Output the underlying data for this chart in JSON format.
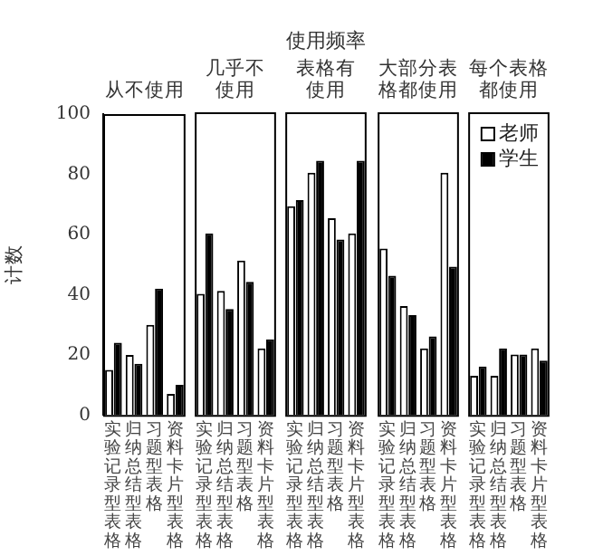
{
  "chart_data": [
    {
      "type": "bar",
      "subtitle": "从不使用",
      "ylabel": "计数",
      "categories": [
        "实验记录型表格",
        "归纳总结型表格",
        "习题型表格",
        "资料卡片型表格"
      ],
      "ylim": [
        0,
        100
      ],
      "yticks": [
        0,
        20,
        40,
        60,
        80,
        100
      ],
      "series": [
        {
          "color": "#ffffff",
          "values": [
            15,
            20,
            30,
            7
          ]
        },
        {
          "color": "#000000",
          "values": [
            24,
            17,
            42,
            10
          ]
        }
      ]
    },
    {
      "type": "bar",
      "subtitle": "几乎不使用",
      "categories": [
        "实验记录型表格",
        "归纳总结型表格",
        "习题型表格",
        "资料卡片型表格"
      ],
      "ylim": [
        0,
        100
      ],
      "tick_labels": "x",
      "series": [
        {
          "color": "#ffffff",
          "values": [
            40,
            41,
            51,
            22
          ]
        },
        {
          "color": "#000000",
          "values": [
            60,
            35,
            44,
            25
          ]
        }
      ]
    },
    {
      "type": "bar",
      "title": "使用频率",
      "subtitle": "表格有使用",
      "categories": [
        "实验记录型表格",
        "归纳总结型表格",
        "习题型表格",
        "资料卡片型表格"
      ],
      "ylim": [
        0,
        100
      ],
      "tick_labels": "x",
      "series": [
        {
          "color": "#ffffff",
          "values": [
            69,
            80,
            65,
            60
          ]
        },
        {
          "color": "#000000",
          "values": [
            71,
            84,
            58,
            84
          ]
        }
      ]
    },
    {
      "type": "bar",
      "subtitle": "大部分表格都使用",
      "categories": [
        "实验记录型表格",
        "归纳总结型表格",
        "习题型表格",
        "资料卡片型表格"
      ],
      "ylim": [
        0,
        100
      ],
      "tick_labels": "x",
      "series": [
        {
          "color": "#ffffff",
          "values": [
            55,
            36,
            22,
            80
          ]
        },
        {
          "color": "#000000",
          "values": [
            46,
            33,
            26,
            49
          ]
        }
      ]
    },
    {
      "type": "bar",
      "subtitle": "每个表格都使用",
      "categories": [
        "实验记录型表格",
        "归纳总结型表格",
        "习题型表格",
        "资料卡片型表格"
      ],
      "ylim": [
        0,
        100
      ],
      "tick_labels": "x",
      "legend": "top right",
      "series": [
        {
          "name": "老师",
          "color": "#ffffff",
          "values": [
            13,
            13,
            20,
            22
          ]
        },
        {
          "name": "学生",
          "color": "#000000",
          "values": [
            16,
            22,
            20,
            18
          ]
        }
      ]
    }
  ]
}
